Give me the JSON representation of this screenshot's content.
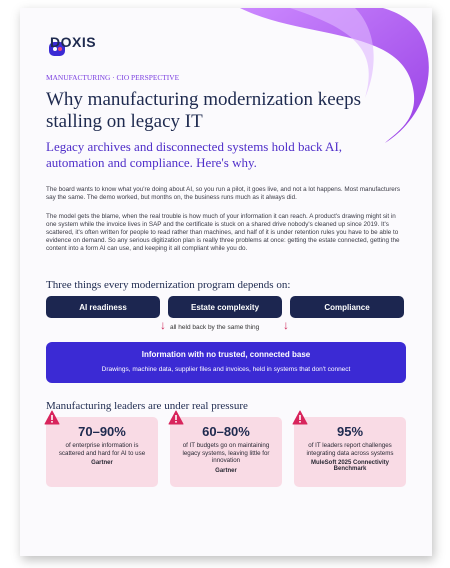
{
  "logo": "DOXIS",
  "kicker": "MANUFACTURING · CIO PERSPECTIVE",
  "title": "Why manufacturing modernization keeps stalling on legacy IT",
  "subtitle": "Legacy archives and disconnected systems hold back AI, automation and compliance. Here's why.",
  "paragraphs": [
    "The board wants to know what you're doing about AI, so you run a pilot, it goes live, and not a lot happens. Most manufacturers say the same. The demo worked, but months on, the business runs much as it always did.",
    "The model gets the blame, when the real trouble is how much of your information it can reach. A product's drawing might sit in one system while the invoice lives in SAP and the certificate is stuck on a shared drive nobody's cleaned up since 2019. It's scattered, it's often written for people to read rather than machines, and half of it is under retention rules you have to be able to evidence on demand. So any serious digitization plan is really three problems at once: getting the estate connected, getting the content into a form AI can use, and keeping it all compliant while you do."
  ],
  "pillars_heading": "Three things every modernization program depends on:",
  "pillars": [
    "AI readiness",
    "Estate complexity",
    "Compliance"
  ],
  "connector": "all held back by the same thing",
  "base": {
    "title": "Information with no trusted, connected base",
    "text": "Drawings, machine data, supplier files and invoices, held in systems that don't connect"
  },
  "pressure_heading": "Manufacturing leaders are under real pressure",
  "stats": [
    {
      "value": "70–90%",
      "text": "of enterprise information is scattered and hard for AI to use",
      "source": "Gartner"
    },
    {
      "value": "60–80%",
      "text": "of IT budgets go on maintaining legacy systems, leaving little for innovation",
      "source": "Gartner"
    },
    {
      "value": "95%",
      "text": "of IT leaders report challenges integrating data across systems",
      "source": "MuleSoft 2025 Connectivity Benchmark"
    }
  ]
}
